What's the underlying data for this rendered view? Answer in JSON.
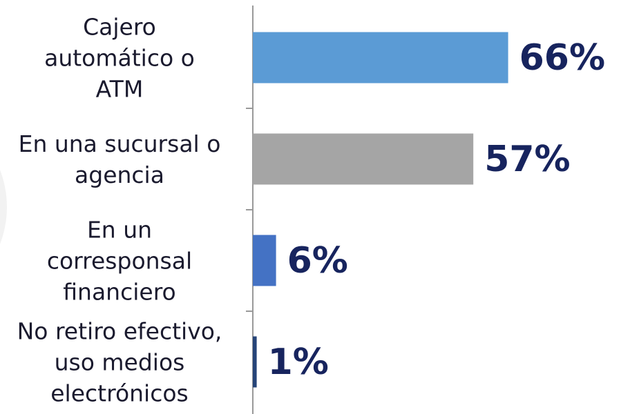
{
  "chart_data": {
    "type": "bar",
    "orientation": "horizontal",
    "categories": [
      "Cajero\nautomático o\nATM",
      "En una sucursal o\nagencia",
      "En un\ncorresponsal\nfinanciero",
      "No retiro efectivo,\nuso medios\nelectrónicos"
    ],
    "values": [
      66,
      57,
      6,
      1
    ],
    "value_labels": [
      "66%",
      "57%",
      "6%",
      "1%"
    ],
    "colors": [
      "#5b9bd5",
      "#a5a5a5",
      "#4472c4",
      "#264478"
    ],
    "xlim": [
      0,
      100
    ]
  }
}
